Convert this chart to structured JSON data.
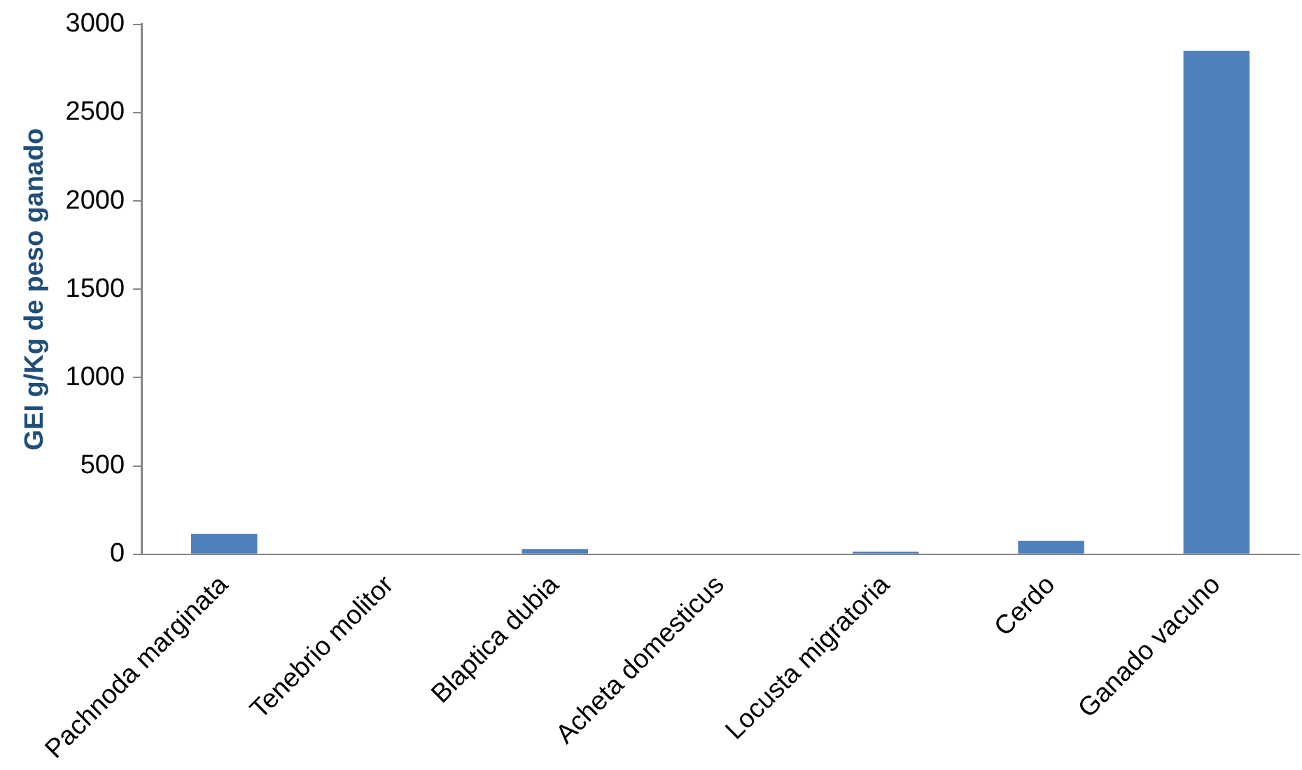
{
  "chart_data": {
    "type": "bar",
    "ylabel": "GEI g/Kg de peso ganado",
    "categories": [
      "Pachnoda marginata",
      "Tenebrio molitor",
      "Blaptica dubia",
      "Acheta domesticus",
      "Locusta migratoria",
      "Cerdo",
      "Ganado vacuno"
    ],
    "values": [
      115,
      0,
      30,
      0,
      15,
      75,
      2850
    ],
    "color": "#4f81bd",
    "ylim": [
      0,
      3000
    ],
    "yticks": [
      0,
      500,
      1000,
      1500,
      2000,
      2500,
      3000
    ],
    "grid": false,
    "legend": false
  }
}
